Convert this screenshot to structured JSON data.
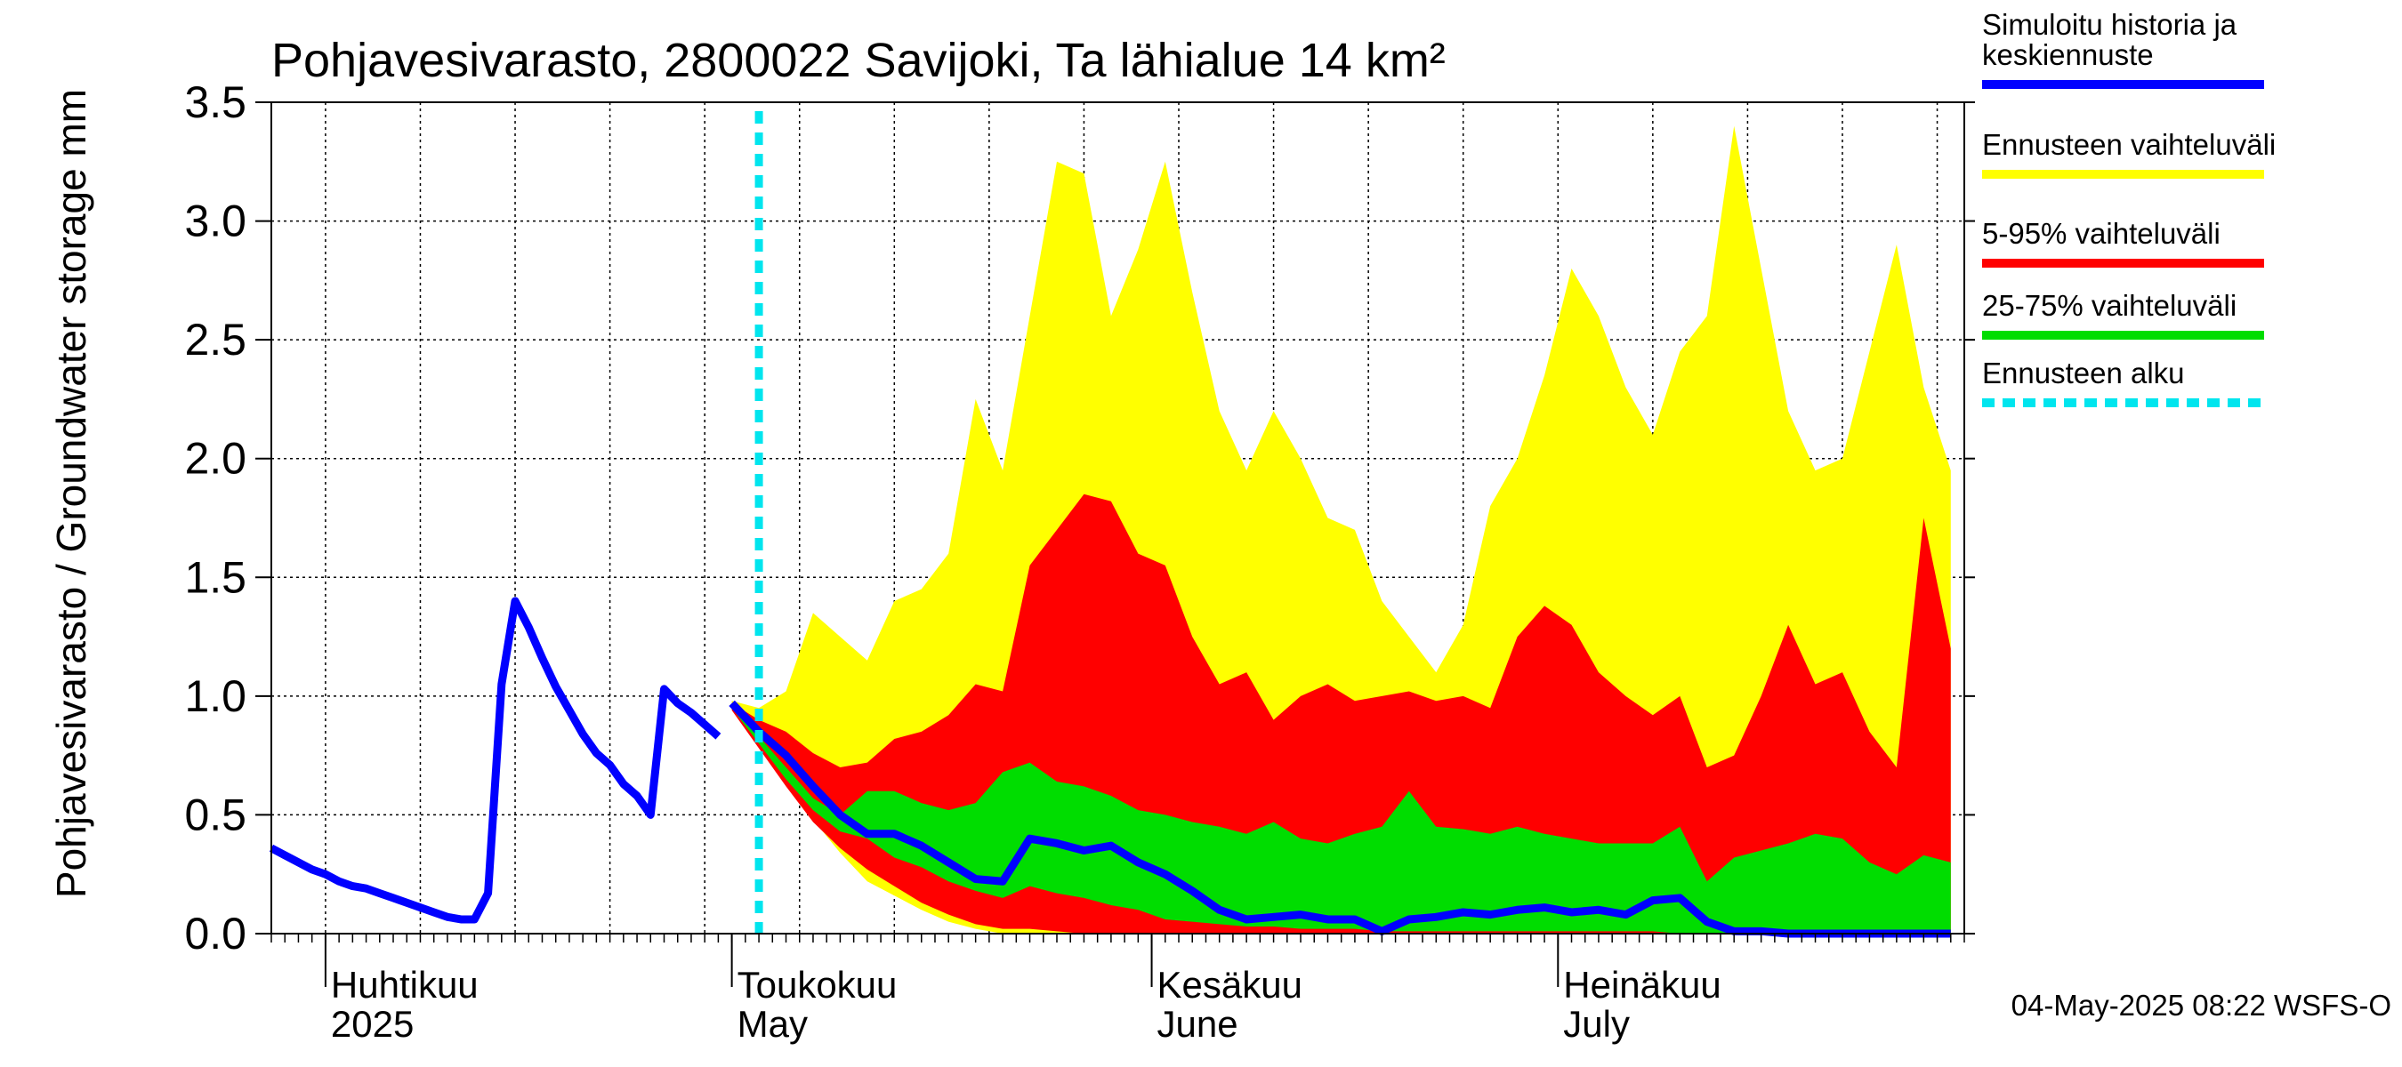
{
  "chart_data": {
    "type": "area",
    "title": "Pohjavesivarasto, 2800022 Savijoki, Ta lähialue 14 km²",
    "ylabel": "Pohjavesivarasto / Groundwater storage   mm",
    "ylim": [
      0,
      3.5
    ],
    "yticks": [
      "0.0",
      "0.5",
      "1.0",
      "1.5",
      "2.0",
      "2.5",
      "3.0",
      "3.5"
    ],
    "x_range": [
      "2025-03-28",
      "2025-07-31"
    ],
    "month_labels": [
      {
        "fi": "Huhtikuu",
        "en": "2025",
        "date": "2025-04-01"
      },
      {
        "fi": "Toukokuu",
        "en": "May",
        "date": "2025-05-01"
      },
      {
        "fi": "Kesäkuu",
        "en": "June",
        "date": "2025-06-01"
      },
      {
        "fi": "Heinäkuu",
        "en": "July",
        "date": "2025-07-01"
      }
    ],
    "forecast_start": "2025-05-03",
    "legend": [
      {
        "label": "Simuloitu historia ja keskiennuste",
        "color": "#0000ff",
        "style": "line"
      },
      {
        "label": "Ennusteen vaihteluväli",
        "color": "#ffff00",
        "style": "line"
      },
      {
        "label": "5-95% vaihteluväli",
        "color": "#ff0000",
        "style": "line"
      },
      {
        "label": "25-75% vaihteluväli",
        "color": "#00dd00",
        "style": "line"
      },
      {
        "label": "Ennusteen alku",
        "color": "#00e5ee",
        "style": "dashed"
      }
    ],
    "colors": {
      "history": "#0000ff",
      "full_range": "#ffff00",
      "p5_95": "#ff0000",
      "p25_75": "#00dd00",
      "forecast_start": "#00e5ee"
    },
    "history": {
      "start": "2025-03-28",
      "values": [
        0.36,
        0.33,
        0.3,
        0.27,
        0.25,
        0.22,
        0.2,
        0.19,
        0.17,
        0.15,
        0.13,
        0.11,
        0.09,
        0.07,
        0.06,
        0.06,
        0.17,
        1.05,
        1.4,
        1.29,
        1.16,
        1.04,
        0.94,
        0.84,
        0.76,
        0.71,
        0.63,
        0.58,
        0.5,
        1.03,
        0.97,
        0.93,
        0.88,
        0.83
      ]
    },
    "forecast": {
      "start": "2025-05-01",
      "dates": [
        "05-01",
        "05-03",
        "05-05",
        "05-07",
        "05-09",
        "05-11",
        "05-13",
        "05-15",
        "05-17",
        "05-19",
        "05-21",
        "05-23",
        "05-25",
        "05-27",
        "05-29",
        "05-31",
        "06-02",
        "06-04",
        "06-06",
        "06-08",
        "06-10",
        "06-12",
        "06-14",
        "06-16",
        "06-18",
        "06-20",
        "06-22",
        "06-24",
        "06-26",
        "06-28",
        "06-30",
        "07-02",
        "07-04",
        "07-06",
        "07-08",
        "07-10",
        "07-12",
        "07-14",
        "07-16",
        "07-18",
        "07-20",
        "07-22",
        "07-24",
        "07-26",
        "07-28",
        "07-30"
      ],
      "median": [
        0.97,
        0.85,
        0.75,
        0.62,
        0.5,
        0.42,
        0.42,
        0.37,
        0.3,
        0.23,
        0.22,
        0.4,
        0.38,
        0.35,
        0.37,
        0.3,
        0.25,
        0.18,
        0.1,
        0.06,
        0.07,
        0.08,
        0.06,
        0.06,
        0.01,
        0.06,
        0.07,
        0.09,
        0.08,
        0.1,
        0.11,
        0.09,
        0.1,
        0.08,
        0.14,
        0.15,
        0.05,
        0.01,
        0.01,
        0.0,
        0.0,
        0.0,
        0.0,
        0.0,
        0.0,
        0.0
      ],
      "min": [
        0.97,
        0.8,
        0.65,
        0.48,
        0.34,
        0.22,
        0.16,
        0.1,
        0.05,
        0.02,
        0.0,
        0.0,
        0.0,
        0.0,
        0.0,
        0.0,
        0.0,
        0.0,
        0.0,
        0.0,
        0.0,
        0.0,
        0.0,
        0.0,
        0.0,
        0.0,
        0.0,
        0.0,
        0.0,
        0.0,
        0.0,
        0.0,
        0.0,
        0.0,
        0.0,
        0.0,
        0.0,
        0.0,
        0.0,
        0.0,
        0.0,
        0.0,
        0.0,
        0.0,
        0.0,
        0.0
      ],
      "max": [
        0.98,
        0.95,
        1.02,
        1.35,
        1.25,
        1.15,
        1.4,
        1.45,
        1.6,
        2.25,
        1.95,
        2.6,
        3.25,
        3.2,
        2.6,
        2.88,
        3.25,
        2.7,
        2.2,
        1.95,
        2.2,
        2.0,
        1.75,
        1.7,
        1.4,
        1.25,
        1.1,
        1.3,
        1.8,
        2.0,
        2.35,
        2.8,
        2.6,
        2.3,
        2.1,
        2.45,
        2.6,
        3.4,
        2.8,
        2.2,
        1.95,
        2.0,
        2.45,
        2.9,
        2.3,
        1.95
      ],
      "p95": [
        0.97,
        0.9,
        0.85,
        0.76,
        0.7,
        0.72,
        0.82,
        0.85,
        0.92,
        1.05,
        1.02,
        1.55,
        1.7,
        1.85,
        1.82,
        1.6,
        1.55,
        1.25,
        1.05,
        1.1,
        0.9,
        1.0,
        1.05,
        0.98,
        1.0,
        1.02,
        0.98,
        1.0,
        0.95,
        1.25,
        1.38,
        1.3,
        1.1,
        1.0,
        0.92,
        1.0,
        0.7,
        0.75,
        1.0,
        1.3,
        1.05,
        1.1,
        0.85,
        0.7,
        1.75,
        1.2
      ],
      "p75": [
        0.96,
        0.83,
        0.7,
        0.57,
        0.5,
        0.6,
        0.6,
        0.55,
        0.52,
        0.55,
        0.68,
        0.72,
        0.64,
        0.62,
        0.58,
        0.52,
        0.5,
        0.47,
        0.45,
        0.42,
        0.47,
        0.4,
        0.38,
        0.42,
        0.45,
        0.6,
        0.45,
        0.44,
        0.42,
        0.45,
        0.42,
        0.4,
        0.38,
        0.38,
        0.38,
        0.45,
        0.22,
        0.32,
        0.35,
        0.38,
        0.42,
        0.4,
        0.3,
        0.25,
        0.33,
        0.3
      ],
      "p25": [
        0.95,
        0.8,
        0.65,
        0.52,
        0.43,
        0.4,
        0.32,
        0.28,
        0.22,
        0.18,
        0.15,
        0.2,
        0.17,
        0.15,
        0.12,
        0.1,
        0.06,
        0.05,
        0.04,
        0.03,
        0.03,
        0.02,
        0.02,
        0.02,
        0.01,
        0.01,
        0.01,
        0.01,
        0.01,
        0.01,
        0.01,
        0.01,
        0.01,
        0.01,
        0.01,
        0.0,
        0.0,
        0.0,
        0.0,
        0.0,
        0.0,
        0.0,
        0.0,
        0.0,
        0.0,
        0.0
      ],
      "p5": [
        0.94,
        0.78,
        0.62,
        0.47,
        0.36,
        0.27,
        0.2,
        0.13,
        0.08,
        0.04,
        0.02,
        0.02,
        0.01,
        0.0,
        0.0,
        0.0,
        0.0,
        0.0,
        0.0,
        0.0,
        0.0,
        0.0,
        0.0,
        0.0,
        0.0,
        0.0,
        0.0,
        0.0,
        0.0,
        0.0,
        0.0,
        0.0,
        0.0,
        0.0,
        0.0,
        0.0,
        0.0,
        0.0,
        0.0,
        0.0,
        0.0,
        0.0,
        0.0,
        0.0,
        0.0,
        0.0
      ]
    }
  },
  "timestamp": "04-May-2025 08:22 WSFS-O"
}
